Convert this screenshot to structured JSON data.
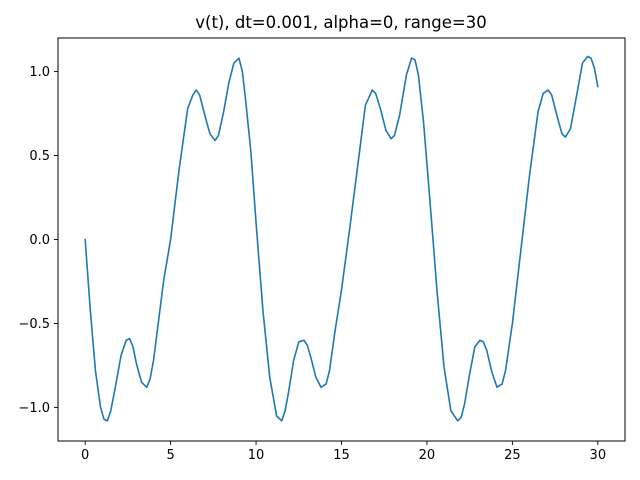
{
  "chart_data": {
    "type": "line",
    "title": "v(t), dt=0.001, alpha=0, range=30",
    "xlabel": "",
    "ylabel": "",
    "xlim": [
      -1.59,
      31.59
    ],
    "ylim": [
      -1.2,
      1.2
    ],
    "xticks": [
      0,
      5,
      10,
      15,
      20,
      25,
      30
    ],
    "xtick_labels": [
      "0",
      "5",
      "10",
      "15",
      "20",
      "25",
      "30"
    ],
    "yticks": [
      -1.0,
      -0.5,
      0.0,
      0.5,
      1.0
    ],
    "ytick_labels": [
      "−1.0",
      "−0.5",
      "0.0",
      "0.5",
      "1.0"
    ],
    "grid": false,
    "series": [
      {
        "color": "#1f77b4",
        "x": [
          0,
          0.3,
          0.6,
          0.9,
          1.1,
          1.3,
          1.5,
          1.8,
          2.1,
          2.4,
          2.6,
          2.8,
          3.0,
          3.3,
          3.6,
          3.8,
          4.0,
          4.3,
          4.6,
          5.0,
          5.5,
          6.0,
          6.3,
          6.5,
          6.7,
          7.0,
          7.3,
          7.6,
          7.8,
          8.1,
          8.4,
          8.7,
          9.0,
          9.2,
          9.4,
          9.7,
          10.0,
          10.4,
          10.8,
          11.2,
          11.5,
          11.7,
          11.9,
          12.2,
          12.5,
          12.8,
          13.0,
          13.2,
          13.5,
          13.8,
          14.1,
          14.3,
          14.6,
          15.0,
          15.5,
          16.0,
          16.4,
          16.8,
          17.0,
          17.3,
          17.6,
          17.9,
          18.1,
          18.4,
          18.8,
          19.1,
          19.3,
          19.5,
          19.8,
          20.2,
          20.6,
          21.0,
          21.4,
          21.8,
          22.0,
          22.2,
          22.5,
          22.8,
          23.1,
          23.3,
          23.5,
          23.8,
          24.1,
          24.4,
          24.6,
          25.0,
          25.5,
          26.0,
          26.5,
          26.8,
          27.1,
          27.3,
          27.6,
          27.9,
          28.1,
          28.4,
          28.8,
          29.1,
          29.4,
          29.6,
          29.8,
          30.0
        ],
        "values": [
          0.0,
          -0.42,
          -0.78,
          -1.0,
          -1.07,
          -1.08,
          -1.02,
          -0.86,
          -0.69,
          -0.6,
          -0.59,
          -0.64,
          -0.74,
          -0.85,
          -0.88,
          -0.83,
          -0.72,
          -0.48,
          -0.24,
          0.0,
          0.42,
          0.78,
          0.86,
          0.89,
          0.86,
          0.74,
          0.63,
          0.59,
          0.62,
          0.76,
          0.93,
          1.05,
          1.08,
          1.0,
          0.82,
          0.52,
          0.1,
          -0.42,
          -0.82,
          -1.05,
          -1.08,
          -1.02,
          -0.91,
          -0.72,
          -0.61,
          -0.6,
          -0.63,
          -0.7,
          -0.82,
          -0.88,
          -0.86,
          -0.78,
          -0.56,
          -0.3,
          0.08,
          0.48,
          0.8,
          0.89,
          0.87,
          0.77,
          0.65,
          0.6,
          0.62,
          0.74,
          0.98,
          1.08,
          1.07,
          0.98,
          0.7,
          0.2,
          -0.32,
          -0.76,
          -1.02,
          -1.08,
          -1.06,
          -0.98,
          -0.8,
          -0.64,
          -0.6,
          -0.61,
          -0.66,
          -0.79,
          -0.88,
          -0.86,
          -0.78,
          -0.5,
          -0.06,
          0.38,
          0.76,
          0.87,
          0.89,
          0.86,
          0.74,
          0.63,
          0.61,
          0.66,
          0.88,
          1.05,
          1.09,
          1.08,
          1.02,
          0.91
        ]
      }
    ]
  }
}
